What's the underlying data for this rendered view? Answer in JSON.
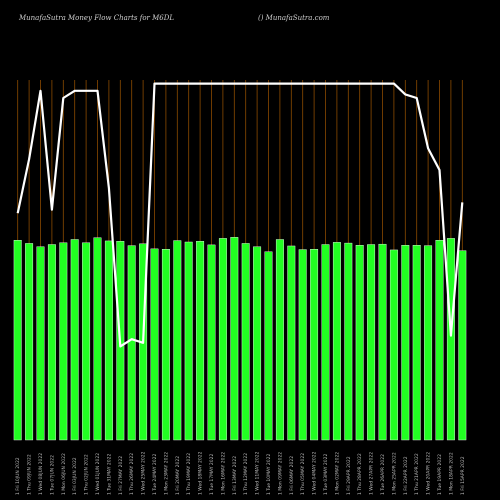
{
  "header": {
    "title": "MunafaSutra  Money Flow  Charts for M6DL",
    "credit": "() MunafaSutra.com"
  },
  "colors": {
    "background": "#000000",
    "bar": "#22ff22",
    "bar_edge": "#ffffff",
    "gridline": "#8a4a00",
    "line": "#ffffff"
  },
  "chart_data": {
    "type": "bar",
    "title": "MunafaSutra  Money Flow  Charts for M6DL",
    "ylim": [
      0,
      100
    ],
    "grid": "vertical gridlines on every bar",
    "categories": [
      "1 Fri 10JUN 2022",
      "1 Thu 09JUN 2022",
      "1 Wed 08JUN 2022",
      "1 Tue 07JUN 2022",
      "1 Mon 06JUN 2022",
      "1 Fri 03JUN 2022",
      "1 Thu 02JUN 2022",
      "1 Wed 01JUN 2022",
      "1 Tue 31MAY 2022",
      "1 Fri 27MAY 2022",
      "1 Thu 26MAY 2022",
      "1 Wed 25MAY 2022",
      "1 Tue 24MAY 2022",
      "1 Mon 23MAY 2022",
      "1 Fri 20MAY 2022",
      "1 Thu 19MAY 2022",
      "1 Wed 18MAY 2022",
      "1 Tue 17MAY 2022",
      "1 Mon 16MAY 2022",
      "1 Fri 13MAY 2022",
      "1 Thu 12MAY 2022",
      "1 Wed 11MAY 2022",
      "1 Tue 10MAY 2022",
      "1 Mon 09MAY 2022",
      "1 Fri 06MAY 2022",
      "1 Thu 05MAY 2022",
      "1 Wed 04MAY 2022",
      "1 Tue 03MAY 2022",
      "1 Mon 02MAY 2022",
      "1 Fri 29APR 2022",
      "1 Thu 28APR 2022",
      "1 Wed 27APR 2022",
      "1 Tue 26APR 2022",
      "1 Mon 25APR 2022",
      "1 Fri 22APR 2022",
      "1 Thu 21APR 2022",
      "1 Wed 20APR 2022",
      "1 Tue 19APR 2022",
      "1 Mon 18APR 2022",
      "1 Fri 15APR 2022"
    ],
    "series": [
      {
        "values": [
          55.5,
          54.6,
          53.7,
          54.3,
          54.8,
          55.7,
          54.8,
          56.2,
          55.3,
          55.2,
          54.0,
          54.5,
          53.1,
          53.0,
          55.4,
          55.0,
          55.2,
          54.2,
          56.0,
          56.3,
          54.6,
          53.7,
          52.3,
          55.7,
          53.9,
          52.9,
          53.0,
          54.3,
          54.9,
          54.7,
          54.1,
          54.3,
          54.4,
          52.8,
          54.1,
          54.1,
          54.0,
          55.5,
          56.0,
          52.6
        ]
      },
      {
        "values": [
          63,
          78,
          97,
          64,
          95,
          97,
          97,
          97,
          70,
          26,
          28,
          27,
          99,
          99,
          99,
          99,
          99,
          99,
          99,
          99,
          99,
          99,
          99,
          99,
          99,
          99,
          99,
          99,
          99,
          99,
          99,
          99,
          99,
          99,
          96,
          95,
          81,
          75,
          29,
          66
        ]
      }
    ]
  }
}
